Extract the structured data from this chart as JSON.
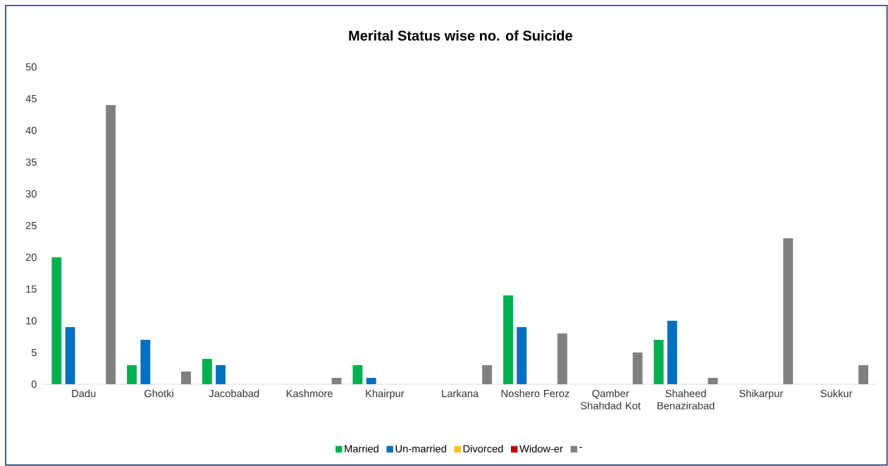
{
  "chart_data": {
    "type": "bar",
    "title": "Merital Status wise no. of Suicide",
    "categories": [
      "Dadu",
      "Ghotki",
      "Jacobabad",
      "Kashmore",
      "Khairpur",
      "Larkana",
      "Noshero Feroz",
      "Qamber Shahdad Kot",
      "Shaheed Benazirabad",
      "Shikarpur",
      "Sukkur"
    ],
    "series": [
      {
        "name": "Married",
        "color": "#00b050",
        "values": [
          20,
          3,
          4,
          0,
          3,
          0,
          14,
          0,
          7,
          0,
          0
        ]
      },
      {
        "name": "Un-married",
        "color": "#0070c0",
        "values": [
          9,
          7,
          3,
          0,
          1,
          0,
          9,
          0,
          10,
          0,
          0
        ]
      },
      {
        "name": "Divorced",
        "color": "#ffc000",
        "values": [
          0,
          0,
          0,
          0,
          0,
          0,
          0,
          0,
          0,
          0,
          0
        ]
      },
      {
        "name": "Widow-er",
        "color": "#c00000",
        "values": [
          0,
          0,
          0,
          0,
          0,
          0,
          0,
          0,
          0,
          0,
          0
        ]
      },
      {
        "name": "-",
        "color": "#808080",
        "values": [
          44,
          2,
          0,
          1,
          0,
          3,
          8,
          5,
          1,
          23,
          3
        ]
      }
    ],
    "ylim": [
      0,
      50
    ],
    "yticks": [
      0,
      5,
      10,
      15,
      20,
      25,
      30,
      35,
      40,
      45,
      50
    ],
    "legend": "bottom"
  }
}
